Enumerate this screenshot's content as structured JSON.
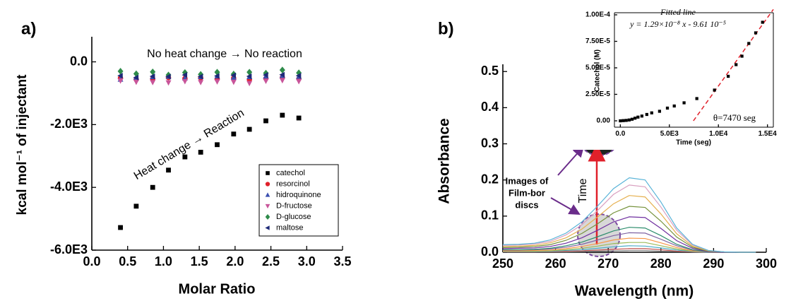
{
  "chart_data": [
    {
      "type": "scatter",
      "panel_label": "a)",
      "xlabel": "Molar Ratio",
      "ylabel": "kcal mol⁻¹ of injectant",
      "xlim": [
        0,
        3.5
      ],
      "ylim": [
        -6000,
        800
      ],
      "xticks": [
        {
          "value": 0,
          "label": "0.0"
        },
        {
          "value": 0.5,
          "label": "0.5"
        },
        {
          "value": 1,
          "label": "1.0"
        },
        {
          "value": 1.5,
          "label": "1.5"
        },
        {
          "value": 2,
          "label": "2.0"
        },
        {
          "value": 2.5,
          "label": "2.5"
        },
        {
          "value": 3,
          "label": "3.0"
        },
        {
          "value": 3.5,
          "label": "3.5"
        }
      ],
      "yticks": [
        {
          "value": 0,
          "label": "0.0"
        },
        {
          "value": -2000,
          "label": "-2.0E3"
        },
        {
          "value": -4000,
          "label": "-4.0E3"
        },
        {
          "value": -6000,
          "label": "-6.0E3"
        }
      ],
      "x": [
        0.4,
        0.62,
        0.85,
        1.07,
        1.3,
        1.52,
        1.75,
        1.98,
        2.2,
        2.43,
        2.66,
        2.89
      ],
      "legend": "lower right",
      "series": [
        {
          "name": "catechol",
          "color": "#000000",
          "marker": "square",
          "values": [
            -5280,
            -4600,
            -4000,
            -3450,
            -3030,
            -2880,
            -2640,
            -2300,
            -2150,
            -1880,
            -1700,
            -1790
          ]
        },
        {
          "name": "resorcinol",
          "color": "#e0202a",
          "marker": "circle",
          "values": [
            -520,
            -560,
            -540,
            -500,
            -530,
            -510,
            -550,
            -520,
            -560,
            -530,
            -500,
            -540
          ]
        },
        {
          "name": "hidroquinone",
          "color": "#3b4fb0",
          "marker": "triangle-up",
          "values": [
            -560,
            -500,
            -480,
            -470,
            -520,
            -480,
            -460,
            -500,
            -480,
            -460,
            -440,
            -470
          ]
        },
        {
          "name": "D-fructose",
          "color": "#c8559a",
          "marker": "triangle-down",
          "values": [
            -600,
            -640,
            -650,
            -660,
            -620,
            -650,
            -630,
            -640,
            -680,
            -610,
            -590,
            -620
          ]
        },
        {
          "name": "D-glucose",
          "color": "#2e8b4a",
          "marker": "diamond",
          "values": [
            -300,
            -380,
            -320,
            -420,
            -340,
            -400,
            -330,
            -390,
            -330,
            -360,
            -260,
            -350
          ]
        },
        {
          "name": "maltose",
          "color": "#1e2a78",
          "marker": "triangle-left",
          "values": [
            -440,
            -500,
            -460,
            -470,
            -420,
            -470,
            -450,
            -430,
            -460,
            -420,
            -410,
            -440
          ]
        }
      ],
      "annotations": [
        {
          "text": "No heat change → No reaction"
        },
        {
          "text": "Heat change → Reaction"
        }
      ]
    },
    {
      "type": "line",
      "panel_label": "b)",
      "xlabel": "Wavelength (nm)",
      "ylabel": "Absorbance",
      "xlim": [
        250,
        300
      ],
      "ylim": [
        0,
        0.52
      ],
      "xticks": [
        250,
        260,
        270,
        280,
        290,
        300
      ],
      "yticks": [
        {
          "value": 0,
          "label": "0.0"
        },
        {
          "value": 0.1,
          "label": "0.1"
        },
        {
          "value": 0.2,
          "label": "0.2"
        },
        {
          "value": 0.3,
          "label": "0.3"
        },
        {
          "value": 0.4,
          "label": "0.4"
        },
        {
          "value": 0.5,
          "label": "0.5"
        }
      ],
      "x": [
        250,
        253,
        256,
        259,
        262,
        265,
        268,
        271,
        274,
        277,
        280,
        283,
        286,
        289,
        292,
        295,
        298
      ],
      "series": [
        {
          "color": "#888888",
          "values": [
            0.001,
            0.001,
            0.001,
            0.001,
            0.001,
            0.002,
            0.003,
            0.004,
            0.005,
            0.005,
            0.003,
            0.002,
            0.001,
            0,
            0,
            0,
            0
          ]
        },
        {
          "color": "#c0504d",
          "values": [
            0.001,
            0.001,
            0.001,
            0.002,
            0.003,
            0.004,
            0.006,
            0.008,
            0.01,
            0.01,
            0.007,
            0.003,
            0.001,
            0,
            0,
            0,
            0
          ]
        },
        {
          "color": "#4bacc6",
          "values": [
            0.002,
            0.002,
            0.002,
            0.003,
            0.005,
            0.007,
            0.011,
            0.015,
            0.018,
            0.017,
            0.012,
            0.006,
            0.002,
            0,
            0,
            0,
            0
          ]
        },
        {
          "color": "#9bbb59",
          "values": [
            0.003,
            0.003,
            0.003,
            0.004,
            0.007,
            0.011,
            0.017,
            0.024,
            0.027,
            0.027,
            0.018,
            0.009,
            0.003,
            0.001,
            0,
            0,
            0
          ]
        },
        {
          "color": "#f79646",
          "values": [
            0.004,
            0.004,
            0.005,
            0.006,
            0.01,
            0.016,
            0.024,
            0.034,
            0.039,
            0.038,
            0.026,
            0.013,
            0.004,
            0.001,
            0,
            0,
            0
          ]
        },
        {
          "color": "#8064a2",
          "values": [
            0.006,
            0.006,
            0.007,
            0.009,
            0.014,
            0.022,
            0.034,
            0.046,
            0.054,
            0.053,
            0.036,
            0.018,
            0.006,
            0.001,
            0,
            0,
            0
          ]
        },
        {
          "color": "#2c8c6c",
          "values": [
            0.007,
            0.007,
            0.008,
            0.011,
            0.018,
            0.028,
            0.043,
            0.059,
            0.069,
            0.067,
            0.046,
            0.022,
            0.007,
            0.002,
            0,
            0,
            0
          ]
        },
        {
          "color": "#7030a0",
          "values": [
            0.01,
            0.011,
            0.012,
            0.016,
            0.025,
            0.04,
            0.061,
            0.084,
            0.098,
            0.096,
            0.066,
            0.032,
            0.011,
            0.002,
            0,
            0,
            0
          ]
        },
        {
          "color": "#76923c",
          "values": [
            0.013,
            0.014,
            0.016,
            0.021,
            0.033,
            0.052,
            0.079,
            0.109,
            0.127,
            0.124,
            0.086,
            0.042,
            0.014,
            0.003,
            0.001,
            0,
            0
          ]
        },
        {
          "color": "#e6b050",
          "values": [
            0.016,
            0.017,
            0.019,
            0.026,
            0.04,
            0.064,
            0.098,
            0.134,
            0.157,
            0.153,
            0.106,
            0.051,
            0.017,
            0.004,
            0.001,
            0,
            0
          ]
        },
        {
          "color": "#d9a0c0",
          "values": [
            0.019,
            0.02,
            0.023,
            0.03,
            0.048,
            0.076,
            0.116,
            0.16,
            0.186,
            0.181,
            0.125,
            0.061,
            0.02,
            0.005,
            0.001,
            0,
            0
          ]
        },
        {
          "color": "#5ab4d8",
          "values": [
            0.021,
            0.022,
            0.025,
            0.034,
            0.053,
            0.084,
            0.128,
            0.176,
            0.206,
            0.2,
            0.139,
            0.067,
            0.022,
            0.005,
            0.001,
            0,
            0
          ]
        }
      ],
      "annotations": [
        {
          "text": "Time"
        },
        {
          "lines": [
            "Images of",
            "Film-bor",
            "discs"
          ]
        }
      ]
    },
    {
      "type": "scatter",
      "xlabel": "Time (seg)",
      "ylabel": "Catechol (M)",
      "xlim": [
        -600,
        15600
      ],
      "ylim": [
        -6e-06,
        0.000102
      ],
      "xticks": [
        {
          "value": 0,
          "label": "0.0"
        },
        {
          "value": 5000,
          "label": "5.0E3"
        },
        {
          "value": 10000,
          "label": "1.0E4"
        },
        {
          "value": 15000,
          "label": "1.5E4"
        }
      ],
      "yticks": [
        {
          "value": 0,
          "label": "0.00"
        },
        {
          "value": 2.5e-05,
          "label": "2.50E-5"
        },
        {
          "value": 5e-05,
          "label": "5.00E-5"
        },
        {
          "value": 7.5e-05,
          "label": "7.50E-5"
        },
        {
          "value": 0.0001,
          "label": "1.00E-4"
        }
      ],
      "x": [
        0,
        300,
        600,
        900,
        1200,
        1500,
        1800,
        2200,
        2700,
        3200,
        4000,
        4800,
        5500,
        6500,
        7800,
        9600,
        11000,
        11800,
        12400,
        13100,
        13800,
        14500
      ],
      "series": [
        {
          "color": "#000000",
          "marker": "square",
          "values": [
            0,
            2e-07,
            4e-07,
            8e-07,
            1.5e-06,
            2.5e-06,
            3.5e-06,
            4.5e-06,
            6e-06,
            7.5e-06,
            9e-06,
            1.2e-05,
            1.4e-05,
            1.7e-05,
            2.1e-05,
            2.9e-05,
            4.2e-05,
            5.3e-05,
            6.1e-05,
            7.3e-05,
            8.3e-05,
            9.3e-05
          ]
        }
      ],
      "fit": {
        "slope": 1.29e-08,
        "intercept": -9.61e-05,
        "color": "#e0202a"
      },
      "annotations": [
        {
          "text": "Fitted line"
        },
        {
          "text": "y = 1.29×10⁻⁸ x - 9.61 10⁻⁵"
        },
        {
          "text": "θ=7470 seg"
        }
      ]
    }
  ]
}
